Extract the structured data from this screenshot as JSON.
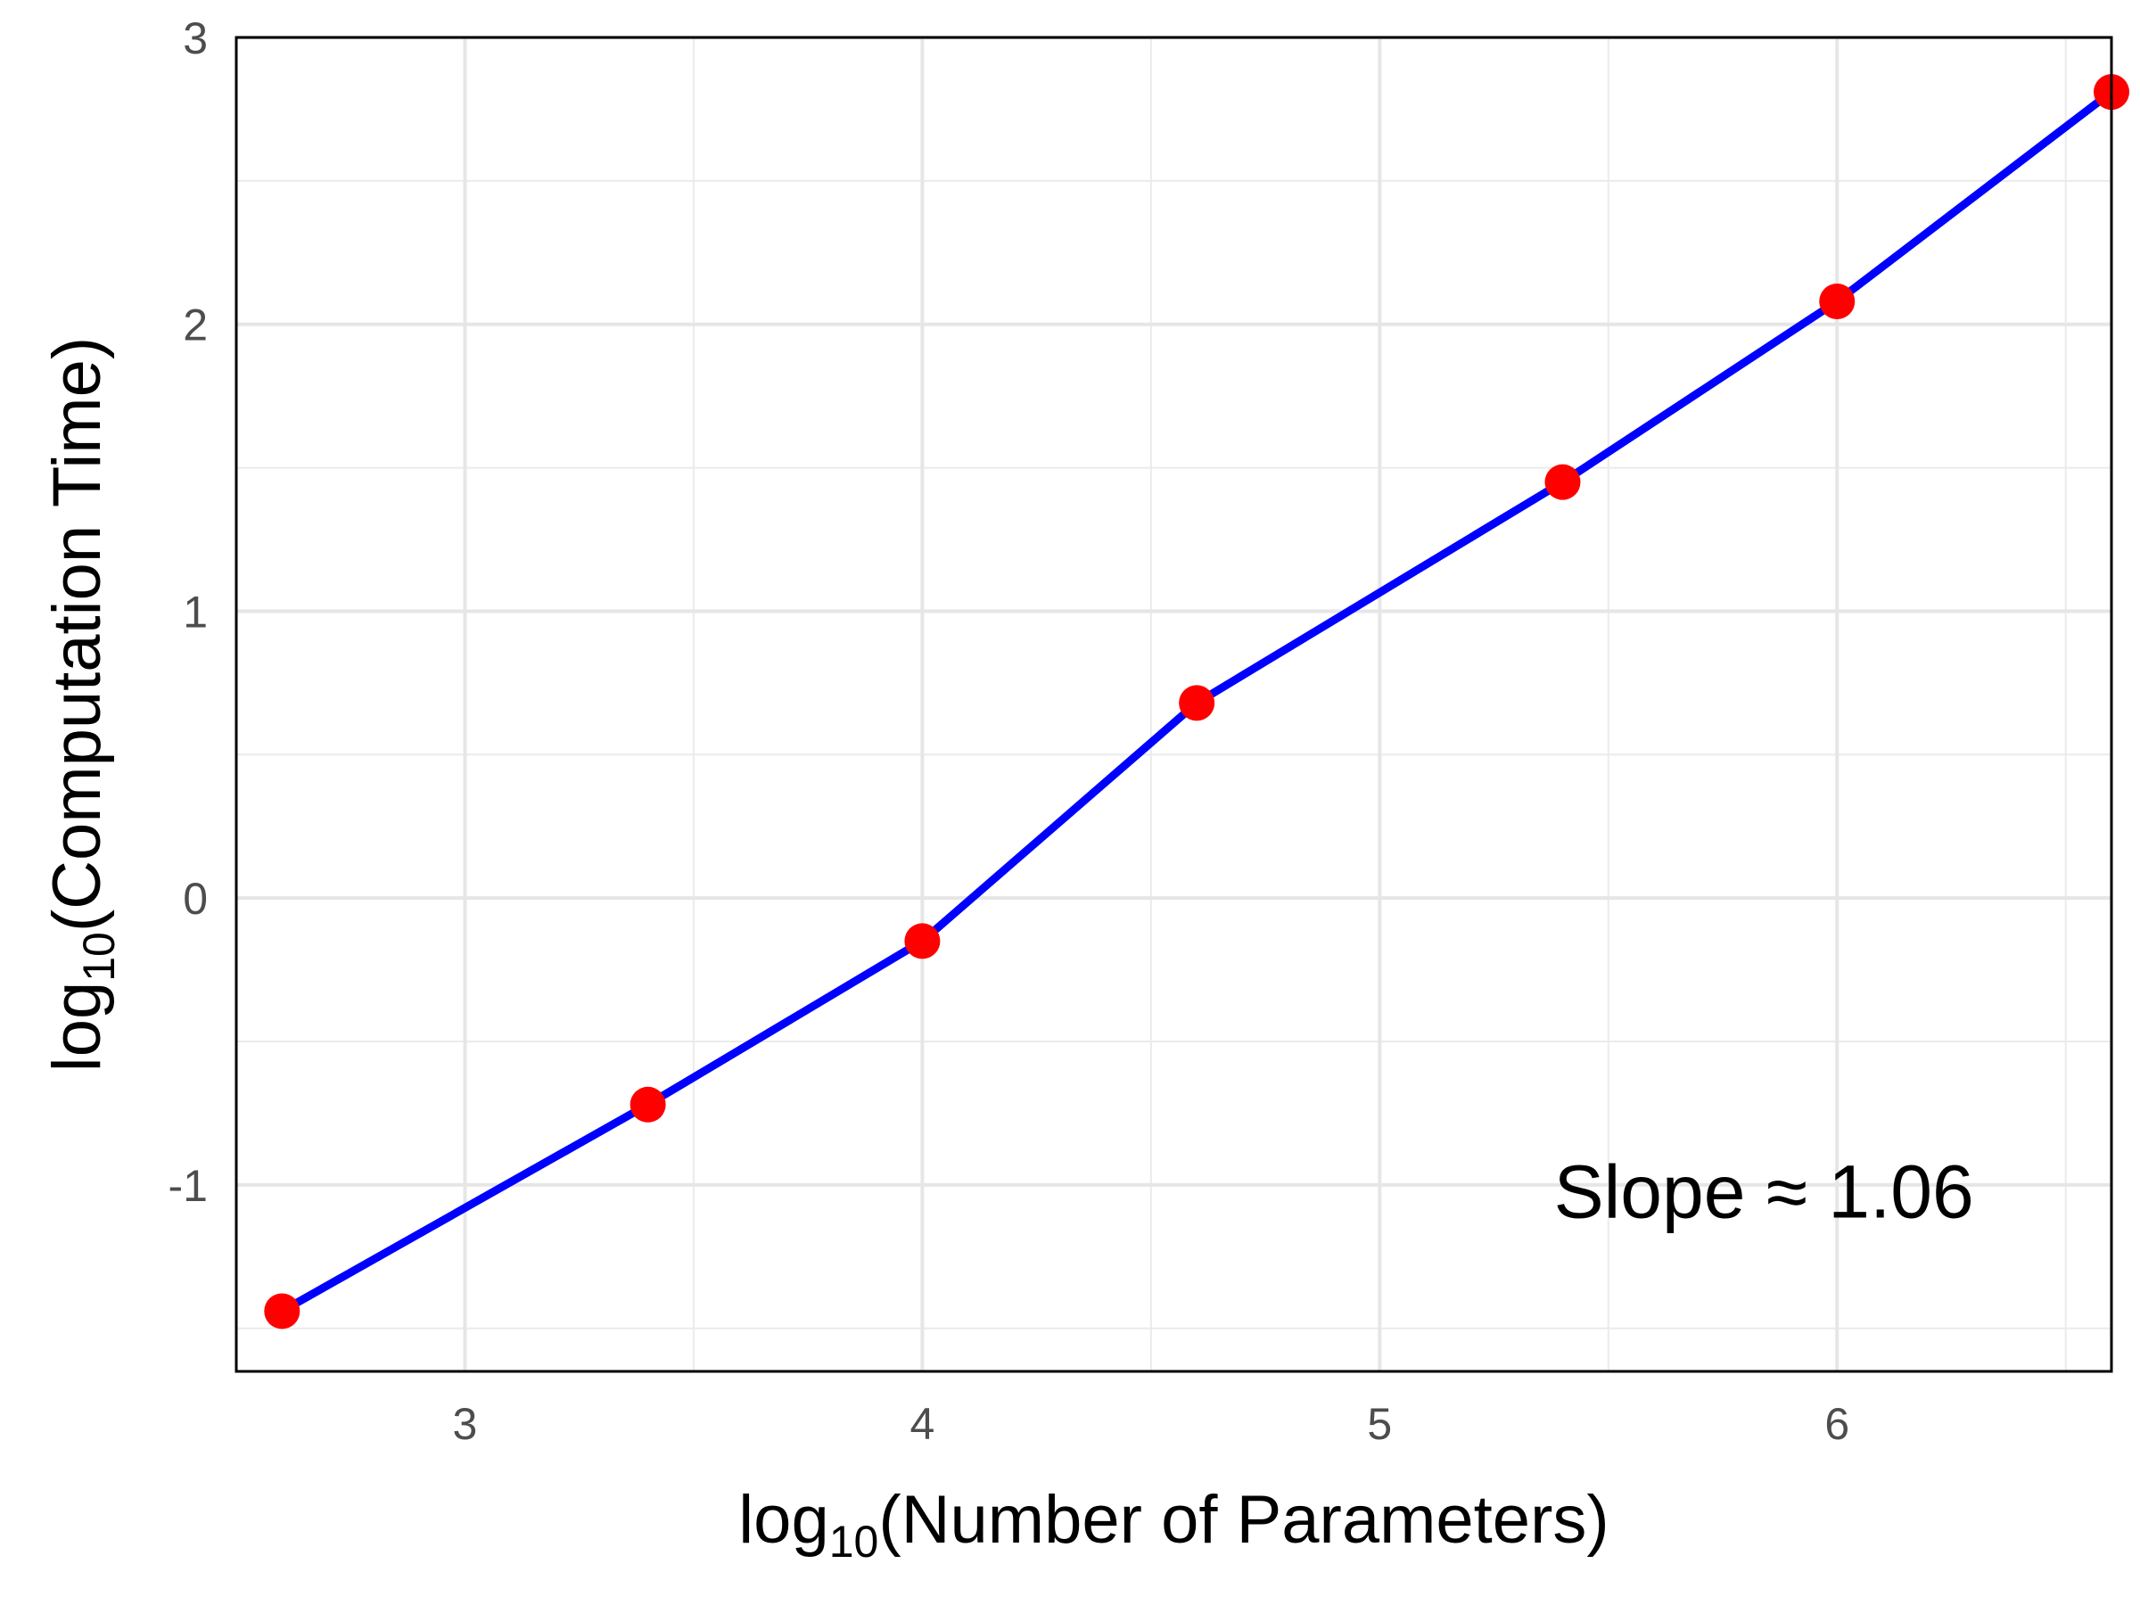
{
  "chart_data": {
    "type": "line",
    "xlabel": {
      "prefix": "log",
      "subscript": "10",
      "inner": "(Number of Parameters)"
    },
    "ylabel": {
      "prefix": "log",
      "subscript": "10",
      "inner": "(Computation Time)"
    },
    "xlim": [
      2.5,
      6.6
    ],
    "ylim": [
      -1.65,
      3.0
    ],
    "x_ticks": [
      3,
      4,
      5,
      6
    ],
    "x_tick_labels": [
      "3",
      "4",
      "5",
      "6"
    ],
    "y_ticks": [
      -1,
      0,
      1,
      2,
      3
    ],
    "y_tick_labels": [
      "-1",
      "0",
      "1",
      "2",
      "3"
    ],
    "grid": true,
    "series": [
      {
        "x": [
          2.6,
          3.4,
          4.0,
          4.6,
          5.4,
          6.0,
          6.6
        ],
        "y": [
          -1.44,
          -0.72,
          -0.15,
          0.68,
          1.45,
          2.08,
          2.81
        ],
        "line_color": "#0000ff",
        "marker_color": "#ff0000"
      }
    ],
    "annotation": "Slope ≈ 1.06"
  }
}
